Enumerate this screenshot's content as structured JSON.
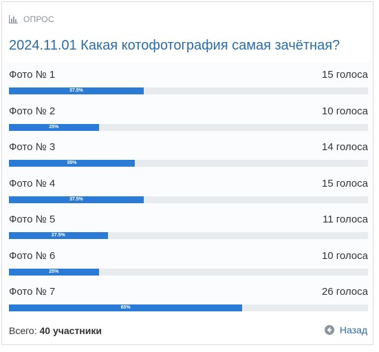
{
  "header": {
    "icon": "bar-chart-icon",
    "kicker": "ОПРОС"
  },
  "poll": {
    "title": "2024.11.01 Какая котофотография самая зачётная?",
    "options": [
      {
        "label": "Фото № 1",
        "votes": "15 голоса",
        "percent_label": "37.5%",
        "percent": 37.5
      },
      {
        "label": "Фото № 2",
        "votes": "10 голоса",
        "percent_label": "25%",
        "percent": 25
      },
      {
        "label": "Фото № 3",
        "votes": "14 голоса",
        "percent_label": "35%",
        "percent": 35
      },
      {
        "label": "Фото № 4",
        "votes": "15 голоса",
        "percent_label": "37.5%",
        "percent": 37.5
      },
      {
        "label": "Фото № 5",
        "votes": "11 голоса",
        "percent_label": "27.5%",
        "percent": 27.5
      },
      {
        "label": "Фото № 6",
        "votes": "10 голоса",
        "percent_label": "25%",
        "percent": 25
      },
      {
        "label": "Фото № 7",
        "votes": "26 голоса",
        "percent_label": "65%",
        "percent": 65
      }
    ],
    "accent_color": "#2b7bd6"
  },
  "footer": {
    "total_label": "Всего:",
    "total_value": "40 участники",
    "back_label": "Назад",
    "back_icon": "arrow-left-circle-icon"
  }
}
